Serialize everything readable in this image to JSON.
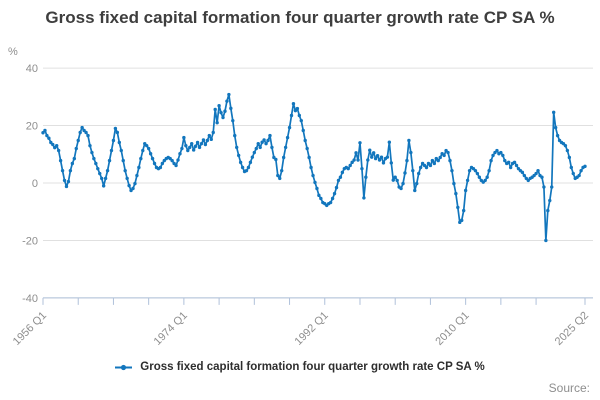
{
  "title": "Gross fixed capital formation four quarter growth rate CP SA %",
  "y_axis_unit": "%",
  "source_label": "Source:",
  "legend": {
    "label": "Gross fixed capital formation four quarter growth rate CP SA %"
  },
  "colors": {
    "line": "#1276bd",
    "grid": "#e0e0e0",
    "axis": "#b0c1da",
    "tick_text": "#8e8e8e",
    "title_text": "#3e3e3e",
    "legend_text": "#2e2e2e",
    "source_text": "#8e8e8e"
  },
  "chart_data": {
    "type": "line",
    "title": "Gross fixed capital formation four quarter growth rate CP SA %",
    "frequency": "quarterly",
    "start_period": "1956 Q1",
    "end_period": "2025 Q2",
    "xlabel": "",
    "ylabel": "%",
    "ylim": [
      -40,
      40
    ],
    "grid": "horizontal-only",
    "legend_position": "bottom-center",
    "y_ticks": [
      40,
      20,
      0,
      -20,
      -40
    ],
    "x_tick_labels": [
      {
        "label": "1956 Q1",
        "index": 0
      },
      {
        "label": "1974 Q1",
        "index": 72
      },
      {
        "label": "1992 Q1",
        "index": 144
      },
      {
        "label": "2010 Q1",
        "index": 216
      },
      {
        "label": "2025 Q2",
        "index": 277
      }
    ],
    "minor_tick_step_quarters": 18,
    "series": [
      {
        "name": "Gross fixed capital formation four quarter growth rate CP SA %",
        "marker": "circle",
        "values": [
          17.5,
          18.3,
          16.5,
          15.6,
          14.1,
          13.4,
          12.3,
          13.0,
          11.3,
          7.8,
          4.3,
          0.9,
          -1.2,
          0.5,
          4.3,
          6.8,
          8.5,
          12.0,
          14.8,
          17.6,
          19.3,
          18.3,
          17.6,
          16.5,
          13.0,
          10.6,
          8.5,
          6.8,
          5.0,
          3.3,
          1.6,
          -1.0,
          1.6,
          4.3,
          7.8,
          11.3,
          14.8,
          19.0,
          17.6,
          14.1,
          11.3,
          7.8,
          4.3,
          1.6,
          -0.9,
          -2.6,
          -1.9,
          -0.2,
          2.6,
          5.4,
          8.5,
          11.3,
          13.7,
          13.0,
          12.0,
          10.2,
          8.5,
          6.8,
          5.4,
          5.0,
          5.4,
          6.8,
          7.8,
          8.5,
          8.9,
          8.5,
          7.8,
          6.8,
          6.1,
          8.0,
          10.2,
          12.0,
          15.8,
          13.0,
          11.3,
          12.4,
          13.7,
          11.5,
          12.8,
          14.1,
          12.4,
          13.7,
          15.0,
          13.4,
          14.8,
          16.5,
          15.2,
          17.6,
          25.6,
          21.0,
          26.9,
          24.5,
          22.8,
          25.0,
          28.5,
          30.8,
          26.0,
          21.7,
          16.5,
          12.4,
          9.6,
          7.2,
          5.4,
          4.0,
          4.3,
          5.4,
          7.2,
          9.0,
          10.6,
          12.0,
          13.7,
          12.4,
          14.2,
          15.0,
          13.7,
          14.8,
          16.5,
          12.4,
          8.9,
          8.2,
          2.6,
          1.6,
          4.3,
          8.9,
          12.4,
          15.8,
          19.3,
          23.5,
          27.6,
          25.2,
          25.9,
          23.5,
          21.7,
          18.3,
          14.8,
          12.0,
          8.9,
          5.4,
          2.6,
          0.2,
          -1.9,
          -4.3,
          -5.4,
          -6.8,
          -7.2,
          -7.8,
          -7.2,
          -6.8,
          -5.4,
          -3.7,
          -1.6,
          0.9,
          2.0,
          3.7,
          5.0,
          5.4,
          5.0,
          6.1,
          7.2,
          8.0,
          10.5,
          8.0,
          14.0,
          5.0,
          -5.2,
          2.0,
          8.0,
          11.4,
          9.0,
          10.5,
          8.5,
          9.5,
          8.0,
          9.0,
          7.0,
          8.5,
          9.0,
          14.2,
          7.0,
          1.0,
          2.0,
          0.9,
          -1.4,
          -1.9,
          -0.2,
          3.5,
          7.8,
          14.8,
          10.6,
          4.3,
          -2.6,
          -0.2,
          3.3,
          5.4,
          6.8,
          6.1,
          5.4,
          6.8,
          6.1,
          7.8,
          6.8,
          8.5,
          7.8,
          8.9,
          10.2,
          9.6,
          11.3,
          10.6,
          7.8,
          4.3,
          -0.2,
          -3.7,
          -8.5,
          -13.7,
          -13.0,
          -9.6,
          -2.6,
          0.9,
          4.3,
          5.4,
          5.0,
          4.3,
          3.3,
          2.0,
          0.9,
          0.3,
          0.9,
          2.0,
          4.3,
          7.8,
          9.6,
          10.6,
          11.3,
          10.2,
          10.6,
          9.6,
          7.8,
          6.8,
          7.2,
          5.4,
          6.8,
          7.2,
          6.1,
          5.0,
          4.3,
          3.7,
          2.6,
          1.6,
          0.9,
          1.6,
          2.0,
          2.6,
          3.3,
          4.3,
          2.6,
          2.0,
          -1.4,
          -20.0,
          -9.6,
          -6.1,
          -1.4,
          24.6,
          19.3,
          16.5,
          14.8,
          14.1,
          13.7,
          13.0,
          11.3,
          8.9,
          5.4,
          3.3,
          1.6,
          2.0,
          2.6,
          4.3,
          5.4,
          5.8
        ]
      }
    ]
  }
}
